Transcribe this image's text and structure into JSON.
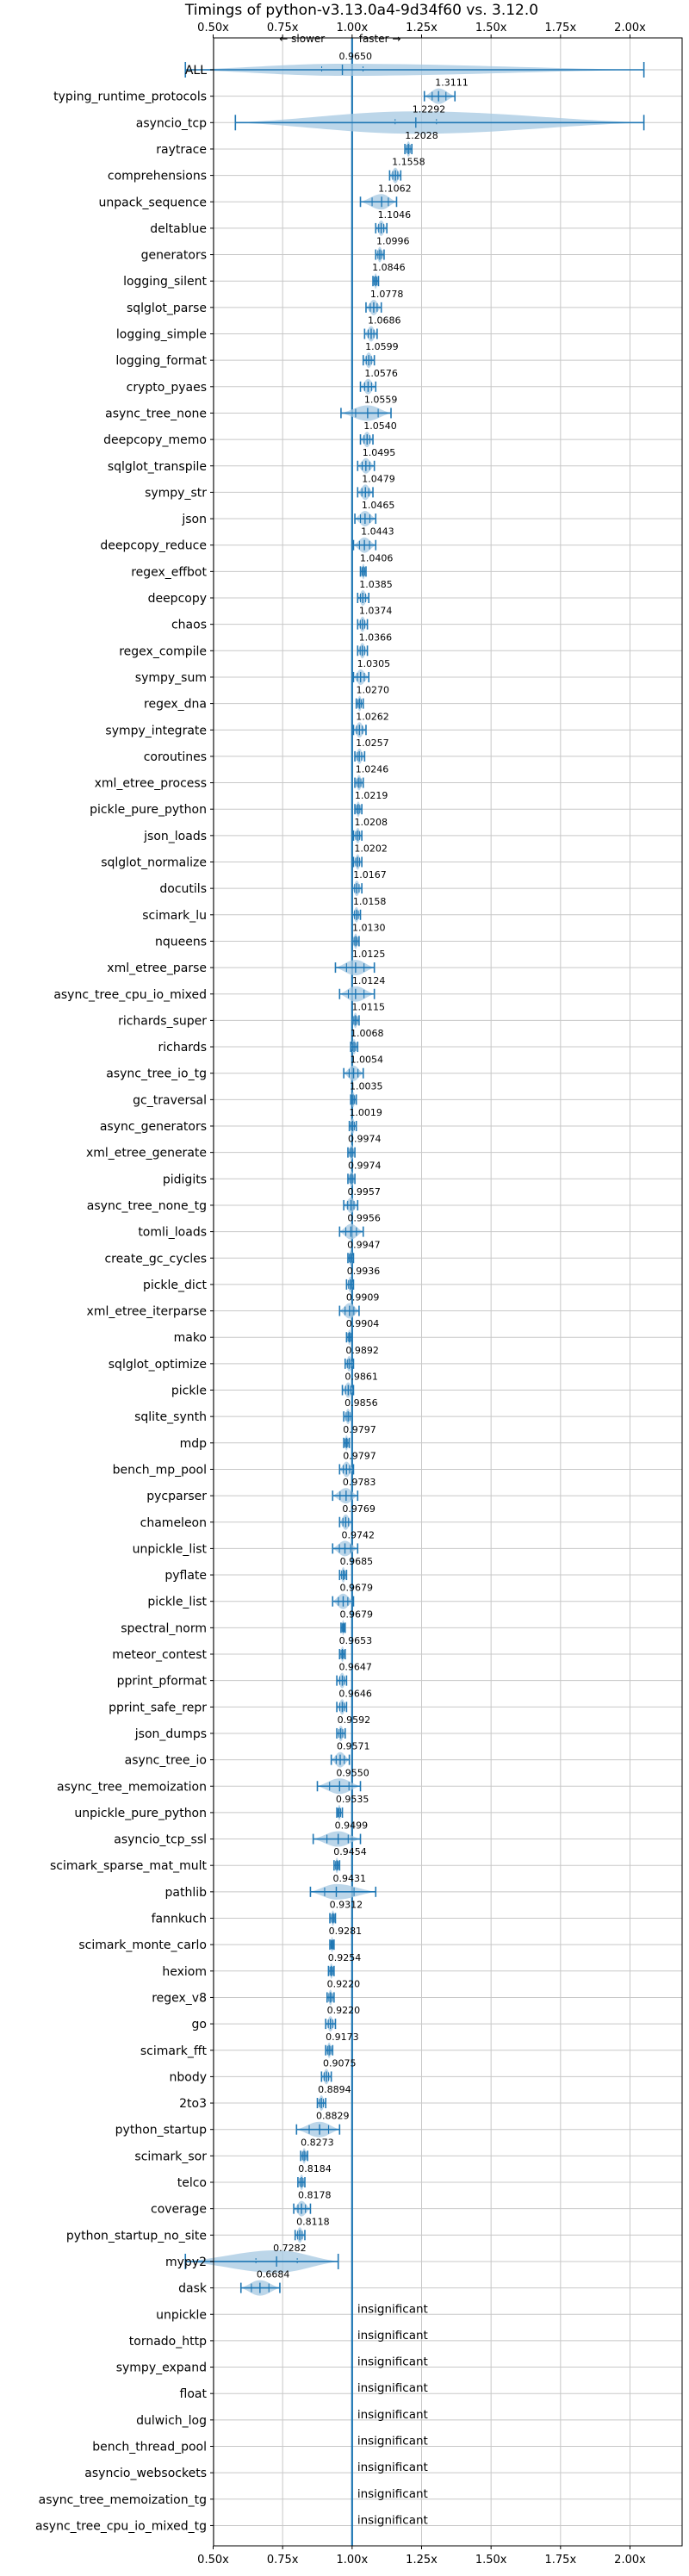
{
  "chart_data": {
    "type": "violin",
    "title": "Timings of python-v3.13.0a4-9d34f60 vs. 3.12.0",
    "direction_labels": {
      "slower": "← slower",
      "faster": "faster →"
    },
    "xlim": [
      0.35,
      2.1
    ],
    "x_ticks": [
      {
        "value": 0.5,
        "label": "0.50x"
      },
      {
        "value": 0.75,
        "label": "0.75x"
      },
      {
        "value": 1.0,
        "label": "1.00x"
      },
      {
        "value": 1.25,
        "label": "1.25x"
      },
      {
        "value": 1.5,
        "label": "1.50x"
      },
      {
        "value": 1.75,
        "label": "1.75x"
      },
      {
        "value": 2.0,
        "label": "2.00x"
      }
    ],
    "grid": true,
    "insignificant_label": "insignificant",
    "benchmarks": [
      {
        "name": "ALL",
        "value": 0.965,
        "label": "0.9650",
        "kind": "all",
        "lo": 0.4,
        "hi": 2.05
      },
      {
        "name": "typing_runtime_protocols",
        "value": 1.3111,
        "label": "1.3111",
        "kind": "sig",
        "lo": 1.26,
        "hi": 1.37
      },
      {
        "name": "asyncio_tcp",
        "value": 1.2292,
        "label": "1.2292",
        "kind": "wide",
        "lo": 0.58,
        "hi": 2.05
      },
      {
        "name": "raytrace",
        "value": 1.2028,
        "label": "1.2028",
        "kind": "sig",
        "lo": 1.19,
        "hi": 1.215
      },
      {
        "name": "comprehensions",
        "value": 1.1558,
        "label": "1.1558",
        "kind": "sig",
        "lo": 1.135,
        "hi": 1.175
      },
      {
        "name": "unpack_sequence",
        "value": 1.1062,
        "label": "1.1062",
        "kind": "sig",
        "lo": 1.03,
        "hi": 1.16
      },
      {
        "name": "deltablue",
        "value": 1.1046,
        "label": "1.1046",
        "kind": "sig",
        "lo": 1.085,
        "hi": 1.125
      },
      {
        "name": "generators",
        "value": 1.0996,
        "label": "1.0996",
        "kind": "sig",
        "lo": 1.085,
        "hi": 1.115
      },
      {
        "name": "logging_silent",
        "value": 1.0846,
        "label": "1.0846",
        "kind": "sig",
        "lo": 1.075,
        "hi": 1.095
      },
      {
        "name": "sqlglot_parse",
        "value": 1.0778,
        "label": "1.0778",
        "kind": "sig",
        "lo": 1.05,
        "hi": 1.105
      },
      {
        "name": "logging_simple",
        "value": 1.0686,
        "label": "1.0686",
        "kind": "sig",
        "lo": 1.045,
        "hi": 1.09
      },
      {
        "name": "logging_format",
        "value": 1.0599,
        "label": "1.0599",
        "kind": "sig",
        "lo": 1.04,
        "hi": 1.08
      },
      {
        "name": "crypto_pyaes",
        "value": 1.0576,
        "label": "1.0576",
        "kind": "sig",
        "lo": 1.03,
        "hi": 1.085
      },
      {
        "name": "async_tree_none",
        "value": 1.0559,
        "label": "1.0559",
        "kind": "sig",
        "lo": 0.96,
        "hi": 1.14
      },
      {
        "name": "deepcopy_memo",
        "value": 1.054,
        "label": "1.0540",
        "kind": "sig",
        "lo": 1.03,
        "hi": 1.075
      },
      {
        "name": "sqlglot_transpile",
        "value": 1.0495,
        "label": "1.0495",
        "kind": "sig",
        "lo": 1.02,
        "hi": 1.08
      },
      {
        "name": "sympy_str",
        "value": 1.0479,
        "label": "1.0479",
        "kind": "sig",
        "lo": 1.02,
        "hi": 1.075
      },
      {
        "name": "json",
        "value": 1.0465,
        "label": "1.0465",
        "kind": "sig",
        "lo": 1.01,
        "hi": 1.085
      },
      {
        "name": "deepcopy_reduce",
        "value": 1.0443,
        "label": "1.0443",
        "kind": "sig",
        "lo": 1.005,
        "hi": 1.085
      },
      {
        "name": "regex_effbot",
        "value": 1.0406,
        "label": "1.0406",
        "kind": "sig",
        "lo": 1.03,
        "hi": 1.05
      },
      {
        "name": "deepcopy",
        "value": 1.0385,
        "label": "1.0385",
        "kind": "sig",
        "lo": 1.02,
        "hi": 1.06
      },
      {
        "name": "chaos",
        "value": 1.0374,
        "label": "1.0374",
        "kind": "sig",
        "lo": 1.02,
        "hi": 1.055
      },
      {
        "name": "regex_compile",
        "value": 1.0366,
        "label": "1.0366",
        "kind": "sig",
        "lo": 1.02,
        "hi": 1.055
      },
      {
        "name": "sympy_sum",
        "value": 1.0305,
        "label": "1.0305",
        "kind": "sig",
        "lo": 1.005,
        "hi": 1.06
      },
      {
        "name": "regex_dna",
        "value": 1.027,
        "label": "1.0270",
        "kind": "sig",
        "lo": 1.015,
        "hi": 1.04
      },
      {
        "name": "sympy_integrate",
        "value": 1.0262,
        "label": "1.0262",
        "kind": "sig",
        "lo": 1.005,
        "hi": 1.05
      },
      {
        "name": "coroutines",
        "value": 1.0257,
        "label": "1.0257",
        "kind": "sig",
        "lo": 1.01,
        "hi": 1.045
      },
      {
        "name": "xml_etree_process",
        "value": 1.0246,
        "label": "1.0246",
        "kind": "sig",
        "lo": 1.01,
        "hi": 1.04
      },
      {
        "name": "pickle_pure_python",
        "value": 1.0219,
        "label": "1.0219",
        "kind": "sig",
        "lo": 1.01,
        "hi": 1.035
      },
      {
        "name": "json_loads",
        "value": 1.0208,
        "label": "1.0208",
        "kind": "sig",
        "lo": 1.005,
        "hi": 1.035
      },
      {
        "name": "sqlglot_normalize",
        "value": 1.0202,
        "label": "1.0202",
        "kind": "sig",
        "lo": 1.005,
        "hi": 1.035
      },
      {
        "name": "docutils",
        "value": 1.0167,
        "label": "1.0167",
        "kind": "sig",
        "lo": 1.0,
        "hi": 1.035
      },
      {
        "name": "scimark_lu",
        "value": 1.0158,
        "label": "1.0158",
        "kind": "sig",
        "lo": 1.0,
        "hi": 1.03
      },
      {
        "name": "nqueens",
        "value": 1.013,
        "label": "1.0130",
        "kind": "sig",
        "lo": 1.0,
        "hi": 1.025
      },
      {
        "name": "xml_etree_parse",
        "value": 1.0125,
        "label": "1.0125",
        "kind": "sig",
        "lo": 0.94,
        "hi": 1.08
      },
      {
        "name": "async_tree_cpu_io_mixed",
        "value": 1.0124,
        "label": "1.0124",
        "kind": "sig",
        "lo": 0.955,
        "hi": 1.08
      },
      {
        "name": "richards_super",
        "value": 1.0115,
        "label": "1.0115",
        "kind": "sig",
        "lo": 1.0,
        "hi": 1.025
      },
      {
        "name": "richards",
        "value": 1.0068,
        "label": "1.0068",
        "kind": "sig",
        "lo": 0.995,
        "hi": 1.02
      },
      {
        "name": "async_tree_io_tg",
        "value": 1.0054,
        "label": "1.0054",
        "kind": "sig",
        "lo": 0.97,
        "hi": 1.04
      },
      {
        "name": "gc_traversal",
        "value": 1.0035,
        "label": "1.0035",
        "kind": "sig",
        "lo": 0.995,
        "hi": 1.015
      },
      {
        "name": "async_generators",
        "value": 1.0019,
        "label": "1.0019",
        "kind": "sig",
        "lo": 0.99,
        "hi": 1.015
      },
      {
        "name": "xml_etree_generate",
        "value": 0.9974,
        "label": "0.9974",
        "kind": "sig",
        "lo": 0.985,
        "hi": 1.01
      },
      {
        "name": "pidigits",
        "value": 0.9974,
        "label": "0.9974",
        "kind": "sig",
        "lo": 0.985,
        "hi": 1.01
      },
      {
        "name": "async_tree_none_tg",
        "value": 0.9957,
        "label": "0.9957",
        "kind": "sig",
        "lo": 0.97,
        "hi": 1.02
      },
      {
        "name": "tomli_loads",
        "value": 0.9956,
        "label": "0.9956",
        "kind": "sig",
        "lo": 0.955,
        "hi": 1.04
      },
      {
        "name": "create_gc_cycles",
        "value": 0.9947,
        "label": "0.9947",
        "kind": "sig",
        "lo": 0.985,
        "hi": 1.005
      },
      {
        "name": "pickle_dict",
        "value": 0.9936,
        "label": "0.9936",
        "kind": "sig",
        "lo": 0.98,
        "hi": 1.005
      },
      {
        "name": "xml_etree_iterparse",
        "value": 0.9909,
        "label": "0.9909",
        "kind": "sig",
        "lo": 0.955,
        "hi": 1.025
      },
      {
        "name": "mako",
        "value": 0.9904,
        "label": "0.9904",
        "kind": "sig",
        "lo": 0.98,
        "hi": 1.0
      },
      {
        "name": "sqlglot_optimize",
        "value": 0.9892,
        "label": "0.9892",
        "kind": "sig",
        "lo": 0.975,
        "hi": 1.005
      },
      {
        "name": "pickle",
        "value": 0.9861,
        "label": "0.9861",
        "kind": "sig",
        "lo": 0.965,
        "hi": 1.005
      },
      {
        "name": "sqlite_synth",
        "value": 0.9856,
        "label": "0.9856",
        "kind": "sig",
        "lo": 0.97,
        "hi": 1.0
      },
      {
        "name": "mdp",
        "value": 0.9797,
        "label": "0.9797",
        "kind": "sig",
        "lo": 0.97,
        "hi": 0.99
      },
      {
        "name": "bench_mp_pool",
        "value": 0.9797,
        "label": "0.9797",
        "kind": "sig",
        "lo": 0.955,
        "hi": 1.005
      },
      {
        "name": "pycparser",
        "value": 0.9783,
        "label": "0.9783",
        "kind": "sig",
        "lo": 0.93,
        "hi": 1.02
      },
      {
        "name": "chameleon",
        "value": 0.9769,
        "label": "0.9769",
        "kind": "sig",
        "lo": 0.955,
        "hi": 1.0
      },
      {
        "name": "unpickle_list",
        "value": 0.9742,
        "label": "0.9742",
        "kind": "sig",
        "lo": 0.93,
        "hi": 1.02
      },
      {
        "name": "pyflate",
        "value": 0.9685,
        "label": "0.9685",
        "kind": "sig",
        "lo": 0.955,
        "hi": 0.98
      },
      {
        "name": "pickle_list",
        "value": 0.9679,
        "label": "0.9679",
        "kind": "sig",
        "lo": 0.93,
        "hi": 1.005
      },
      {
        "name": "spectral_norm",
        "value": 0.9679,
        "label": "0.9679",
        "kind": "sig",
        "lo": 0.96,
        "hi": 0.975
      },
      {
        "name": "meteor_contest",
        "value": 0.9653,
        "label": "0.9653",
        "kind": "sig",
        "lo": 0.955,
        "hi": 0.975
      },
      {
        "name": "pprint_pformat",
        "value": 0.9647,
        "label": "0.9647",
        "kind": "sig",
        "lo": 0.945,
        "hi": 0.98
      },
      {
        "name": "pprint_safe_repr",
        "value": 0.9646,
        "label": "0.9646",
        "kind": "sig",
        "lo": 0.945,
        "hi": 0.98
      },
      {
        "name": "json_dumps",
        "value": 0.9592,
        "label": "0.9592",
        "kind": "sig",
        "lo": 0.945,
        "hi": 0.975
      },
      {
        "name": "async_tree_io",
        "value": 0.9571,
        "label": "0.9571",
        "kind": "sig",
        "lo": 0.925,
        "hi": 0.99
      },
      {
        "name": "async_tree_memoization",
        "value": 0.955,
        "label": "0.9550",
        "kind": "sig",
        "lo": 0.875,
        "hi": 1.03
      },
      {
        "name": "unpickle_pure_python",
        "value": 0.9535,
        "label": "0.9535",
        "kind": "sig",
        "lo": 0.945,
        "hi": 0.965
      },
      {
        "name": "asyncio_tcp_ssl",
        "value": 0.9499,
        "label": "0.9499",
        "kind": "sig",
        "lo": 0.86,
        "hi": 1.03
      },
      {
        "name": "scimark_sparse_mat_mult",
        "value": 0.9454,
        "label": "0.9454",
        "kind": "sig",
        "lo": 0.935,
        "hi": 0.955
      },
      {
        "name": "pathlib",
        "value": 0.9431,
        "label": "0.9431",
        "kind": "sig",
        "lo": 0.85,
        "hi": 1.085
      },
      {
        "name": "fannkuch",
        "value": 0.9312,
        "label": "0.9312",
        "kind": "sig",
        "lo": 0.92,
        "hi": 0.94
      },
      {
        "name": "scimark_monte_carlo",
        "value": 0.9281,
        "label": "0.9281",
        "kind": "sig",
        "lo": 0.92,
        "hi": 0.935
      },
      {
        "name": "hexiom",
        "value": 0.9254,
        "label": "0.9254",
        "kind": "sig",
        "lo": 0.915,
        "hi": 0.935
      },
      {
        "name": "regex_v8",
        "value": 0.922,
        "label": "0.9220",
        "kind": "sig",
        "lo": 0.91,
        "hi": 0.935
      },
      {
        "name": "go",
        "value": 0.922,
        "label": "0.9220",
        "kind": "sig",
        "lo": 0.905,
        "hi": 0.94
      },
      {
        "name": "scimark_fft",
        "value": 0.9173,
        "label": "0.9173",
        "kind": "sig",
        "lo": 0.905,
        "hi": 0.93
      },
      {
        "name": "nbody",
        "value": 0.9075,
        "label": "0.9075",
        "kind": "sig",
        "lo": 0.89,
        "hi": 0.925
      },
      {
        "name": "2to3",
        "value": 0.8894,
        "label": "0.8894",
        "kind": "sig",
        "lo": 0.875,
        "hi": 0.905
      },
      {
        "name": "python_startup",
        "value": 0.8829,
        "label": "0.8829",
        "kind": "sig",
        "lo": 0.8,
        "hi": 0.955
      },
      {
        "name": "scimark_sor",
        "value": 0.8273,
        "label": "0.8273",
        "kind": "sig",
        "lo": 0.815,
        "hi": 0.84
      },
      {
        "name": "telco",
        "value": 0.8184,
        "label": "0.8184",
        "kind": "sig",
        "lo": 0.805,
        "hi": 0.83
      },
      {
        "name": "coverage",
        "value": 0.8178,
        "label": "0.8178",
        "kind": "sig",
        "lo": 0.79,
        "hi": 0.85
      },
      {
        "name": "python_startup_no_site",
        "value": 0.8118,
        "label": "0.8118",
        "kind": "sig",
        "lo": 0.795,
        "hi": 0.83
      },
      {
        "name": "mypy2",
        "value": 0.7282,
        "label": "0.7282",
        "kind": "wide",
        "lo": 0.4,
        "hi": 0.95
      },
      {
        "name": "dask",
        "value": 0.6684,
        "label": "0.6684",
        "kind": "sig",
        "lo": 0.6,
        "hi": 0.74
      },
      {
        "name": "unpickle",
        "value": null,
        "label": "",
        "kind": "insig"
      },
      {
        "name": "tornado_http",
        "value": null,
        "label": "",
        "kind": "insig"
      },
      {
        "name": "sympy_expand",
        "value": null,
        "label": "",
        "kind": "insig"
      },
      {
        "name": "float",
        "value": null,
        "label": "",
        "kind": "insig"
      },
      {
        "name": "dulwich_log",
        "value": null,
        "label": "",
        "kind": "insig"
      },
      {
        "name": "bench_thread_pool",
        "value": null,
        "label": "",
        "kind": "insig"
      },
      {
        "name": "asyncio_websockets",
        "value": null,
        "label": "",
        "kind": "insig"
      },
      {
        "name": "async_tree_memoization_tg",
        "value": null,
        "label": "",
        "kind": "insig"
      },
      {
        "name": "async_tree_cpu_io_mixed_tg",
        "value": null,
        "label": "",
        "kind": "insig"
      }
    ]
  },
  "colors": {
    "violin_fill": "#a6c8e2",
    "line": "#1f77b4",
    "grid": "#c8c8c8",
    "reference": "#1f77b4",
    "median_mark": "#e8706f"
  }
}
